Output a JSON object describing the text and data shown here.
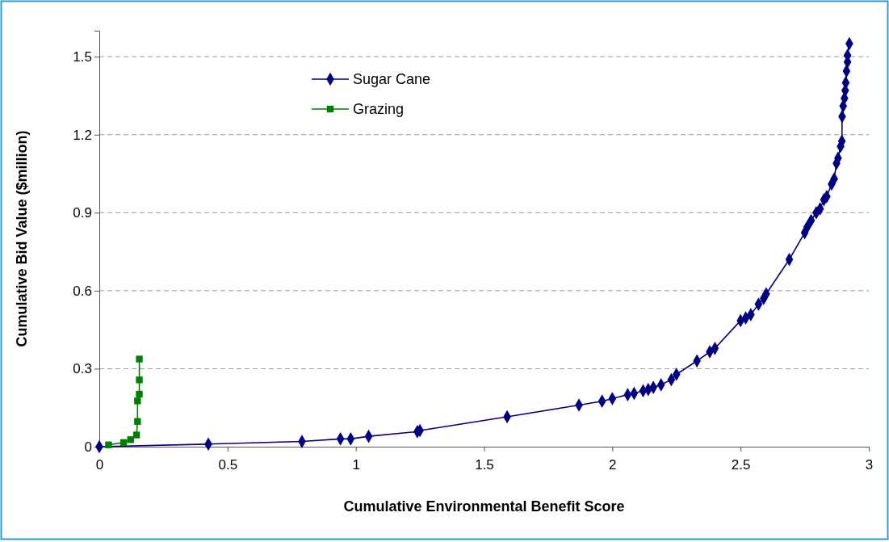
{
  "chart_data": {
    "type": "line",
    "xlabel": "Cumulative Environmental Benefit Score",
    "ylabel": "Cumulative Bid Value ($million)",
    "xlim": [
      0,
      3
    ],
    "xticks": [
      0,
      0.5,
      1,
      1.5,
      2,
      2.5,
      3
    ],
    "ylim": [
      0,
      1.6
    ],
    "yticks": [
      {
        "value": 0,
        "label": "0"
      },
      {
        "value": 0.3,
        "label": "0.3"
      },
      {
        "value": 0.6,
        "label": "0.6"
      },
      {
        "value": 0.9,
        "label": "0.9"
      },
      {
        "value": 1.2,
        "label": "1.2"
      },
      {
        "value": 1.5,
        "label": "1.5"
      }
    ],
    "grid": "y",
    "legend": "top left",
    "line_style": "solid",
    "series": [
      {
        "name": "Sugar Cane",
        "color": "#000080",
        "marker": "diamond",
        "x": [
          0,
          0.425,
          0.79,
          0.94,
          0.98,
          1.05,
          1.24,
          1.25,
          1.59,
          1.87,
          1.96,
          2.0,
          2.06,
          2.085,
          2.12,
          2.14,
          2.16,
          2.19,
          2.23,
          2.25,
          2.33,
          2.38,
          2.4,
          2.5,
          2.52,
          2.54,
          2.57,
          2.59,
          2.6,
          2.69,
          2.75,
          2.76,
          2.775,
          2.795,
          2.81,
          2.825,
          2.836,
          2.855,
          2.865,
          2.874,
          2.88,
          2.89,
          2.895,
          2.896,
          2.9,
          2.905,
          2.908,
          2.91,
          2.913,
          2.917,
          2.917,
          2.924
        ],
        "values": [
          0,
          0.01,
          0.02,
          0.03,
          0.03,
          0.04,
          0.058,
          0.062,
          0.115,
          0.16,
          0.175,
          0.185,
          0.2,
          0.205,
          0.215,
          0.22,
          0.228,
          0.238,
          0.258,
          0.278,
          0.33,
          0.365,
          0.378,
          0.485,
          0.495,
          0.508,
          0.548,
          0.57,
          0.588,
          0.72,
          0.823,
          0.845,
          0.87,
          0.9,
          0.915,
          0.95,
          0.962,
          1.01,
          1.03,
          1.09,
          1.11,
          1.155,
          1.175,
          1.27,
          1.31,
          1.34,
          1.37,
          1.4,
          1.445,
          1.48,
          1.505,
          1.55
        ]
      },
      {
        "name": "Grazing",
        "color": "#008000",
        "marker": "square",
        "x": [
          0.036,
          0.095,
          0.122,
          0.145,
          0.149,
          0.149,
          0.156,
          0.156,
          0.156
        ],
        "values": [
          0.007,
          0.016,
          0.027,
          0.045,
          0.097,
          0.176,
          0.202,
          0.257,
          0.337
        ]
      }
    ]
  }
}
